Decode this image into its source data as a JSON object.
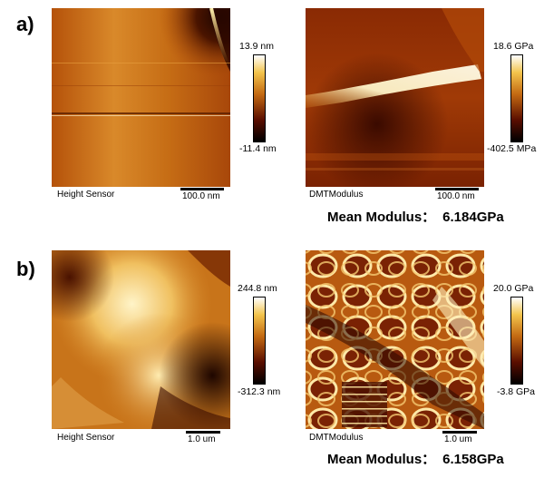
{
  "panels": [
    {
      "letter": "a)",
      "height": {
        "channel": "Height Sensor",
        "scalebar": "100.0 nm",
        "cbar_max": "13.9 nm",
        "cbar_min": "-11.4 nm"
      },
      "modulus": {
        "channel": "DMTModulus",
        "scalebar": "100.0 nm",
        "cbar_max": "18.6 GPa",
        "cbar_min": "-402.5 MPa"
      },
      "mean_label": "Mean Modulus：",
      "mean_value": "6.184GPa"
    },
    {
      "letter": "b)",
      "height": {
        "channel": "Height Sensor",
        "scalebar": "1.0 um",
        "cbar_max": "244.8 nm",
        "cbar_min": "-312.3 nm"
      },
      "modulus": {
        "channel": "DMTModulus",
        "scalebar": "1.0 um",
        "cbar_max": "20.0 GPa",
        "cbar_min": "-3.8 GPa"
      },
      "mean_label": "Mean Modulus：",
      "mean_value": "6.158GPa"
    }
  ],
  "colors": {
    "afm_dark": "#1a0500",
    "afm_mid": "#c46a12",
    "afm_light": "#fff6d8"
  }
}
